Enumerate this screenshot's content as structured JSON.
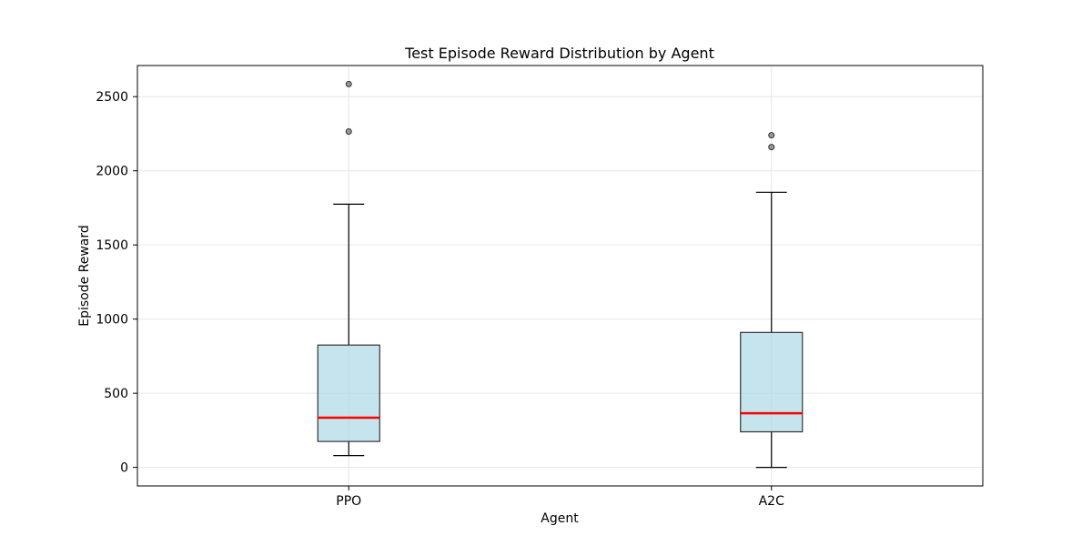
{
  "chart_data": {
    "type": "boxplot",
    "title": "Test Episode Reward Distribution by Agent",
    "xlabel": "Agent",
    "ylabel": "Episode Reward",
    "categories": [
      "PPO",
      "A2C"
    ],
    "ylim": [
      -125,
      2710
    ],
    "yticks": [
      0,
      500,
      1000,
      1500,
      2000,
      2500
    ],
    "grid": true,
    "boxes": [
      {
        "name": "PPO",
        "whisker_low": 80,
        "q1": 175,
        "median": 335,
        "q3": 825,
        "whisker_high": 1775,
        "outliers": [
          2265,
          2585
        ]
      },
      {
        "name": "A2C",
        "whisker_low": 0,
        "q1": 240,
        "median": 365,
        "q3": 910,
        "whisker_high": 1855,
        "outliers": [
          2160,
          2240
        ]
      }
    ],
    "colors": {
      "box_fill": "#add8e6",
      "box_edge": "#333333",
      "median": "#ff0000",
      "outlier": "#808080",
      "grid": "#e6e6e6"
    }
  }
}
